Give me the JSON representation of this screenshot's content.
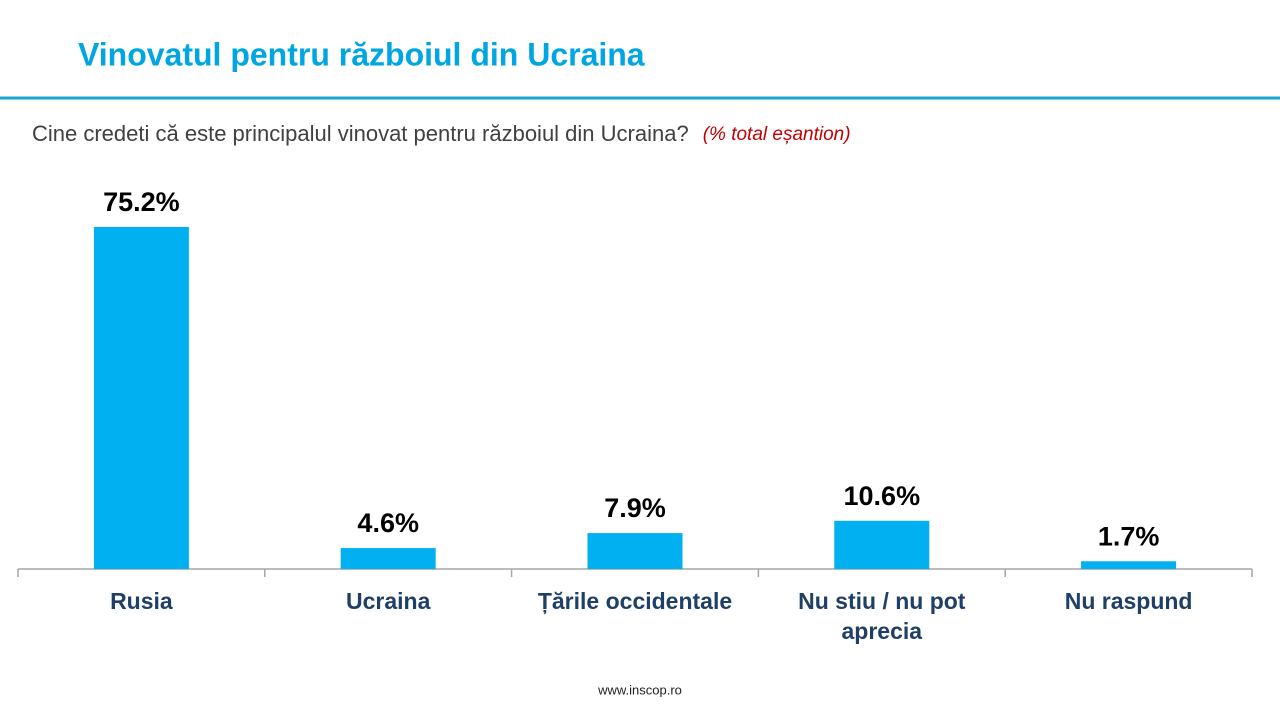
{
  "chart_data": {
    "type": "bar",
    "title": "Vinovatul pentru războiul din Ucraina",
    "subtitle": "Cine credeti că este principalul vinovat pentru războiul din Ucraina?",
    "note": "(% total eșantion)",
    "categories": [
      "Rusia",
      "Ucraina",
      "Țările occidentale",
      "Nu stiu / nu pot aprecia",
      "Nu raspund"
    ],
    "values": [
      75.2,
      4.6,
      7.9,
      10.6,
      1.7
    ],
    "value_labels": [
      "75.2%",
      "4.6%",
      "7.9%",
      "10.6%",
      "1.7%"
    ],
    "color": "#00b0f0",
    "footer": "www.inscop.ro"
  }
}
